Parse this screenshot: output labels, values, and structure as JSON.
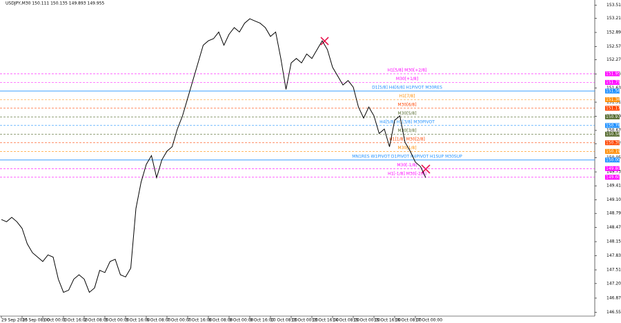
{
  "chart_data": {
    "type": "line",
    "title": "USDJPY,M30  150.111 150.135 149.893 149.955",
    "categories": [
      "29 Sep 2025",
      null,
      null,
      null,
      "30 Sep 08:00",
      null,
      null,
      null,
      "1 Oct 00:00",
      null,
      null,
      null,
      "1 Oct 16:00",
      null,
      null,
      null,
      "2 Oct 08:00",
      null,
      null,
      null,
      "3 Oct 00:00",
      null,
      null,
      null,
      "3 Oct 16:00",
      null,
      null,
      null,
      "6 Oct 08:00",
      null,
      null,
      null,
      "7 Oct 00:00",
      null,
      null,
      null,
      "7 Oct 16:00",
      null,
      null,
      null,
      "8 Oct 08:00",
      null,
      null,
      null,
      "9 Oct 00:00",
      null,
      null,
      null,
      "9 Oct 16:00",
      null,
      null,
      null,
      "10 Oct 08:00",
      null,
      null,
      null,
      "13 Oct 00:00",
      null,
      null,
      null,
      "13 Oct 16:00",
      null,
      null,
      null,
      "14 Oct 08:00",
      null,
      null,
      null,
      "15 Oct 00:00",
      null,
      null,
      null,
      "15 Oct 16:00",
      null,
      null,
      null,
      "16 Oct 08:00",
      null,
      null,
      null,
      "17 Oct 00:00",
      null,
      null
    ],
    "series": [
      {
        "color": "#000000",
        "values": [
          148.65,
          148.6,
          148.7,
          148.6,
          148.45,
          148.1,
          147.9,
          147.8,
          147.7,
          147.85,
          147.8,
          147.3,
          147.0,
          147.05,
          147.3,
          147.4,
          147.3,
          147.0,
          147.1,
          147.5,
          147.45,
          147.7,
          147.75,
          147.4,
          147.35,
          147.55,
          148.9,
          149.5,
          149.9,
          150.1,
          149.6,
          150.0,
          150.2,
          150.3,
          150.7,
          151.0,
          151.4,
          151.8,
          152.2,
          152.6,
          152.7,
          152.75,
          152.9,
          152.6,
          152.85,
          153.0,
          152.9,
          153.1,
          153.2,
          153.15,
          153.1,
          153.0,
          152.8,
          152.9,
          152.3,
          151.6,
          152.2,
          152.3,
          152.2,
          152.4,
          152.3,
          152.5,
          152.7,
          152.5,
          152.1,
          151.9,
          151.7,
          151.8,
          151.65,
          151.2,
          150.95,
          151.2,
          151.0,
          150.6,
          150.7,
          150.3,
          150.9,
          151.0,
          150.4,
          150.2,
          149.95,
          149.85,
          149.6
        ]
      }
    ],
    "ylim": [
      146.4,
      153.625
    ],
    "yticks": [
      {
        "value": 153.51,
        "label": "153.510"
      },
      {
        "value": 153.21,
        "label": "153.210"
      },
      {
        "value": 152.89,
        "label": "152.890"
      },
      {
        "value": 152.57,
        "label": "152.570"
      },
      {
        "value": 152.27,
        "label": "152.270"
      },
      {
        "value": 151.95,
        "label": "151.950"
      },
      {
        "value": 151.63,
        "label": "151.630"
      },
      {
        "value": 151.31,
        "label": "151.310"
      },
      {
        "value": 150.99,
        "label": "150.990"
      },
      {
        "value": 150.67,
        "label": "150.670"
      },
      {
        "value": 150.37,
        "label": "150.370"
      },
      {
        "value": 150.05,
        "label": "150.050"
      },
      {
        "value": 149.73,
        "label": "149.730"
      },
      149.415,
      {
        "value": 149.1,
        "label": "149.100"
      },
      {
        "value": 148.79,
        "label": "148.790"
      },
      {
        "value": 148.47,
        "label": "148.470"
      },
      {
        "value": 148.15,
        "label": "148.150"
      },
      {
        "value": 147.83,
        "label": "147.830"
      },
      {
        "value": 147.51,
        "label": "147.510"
      },
      {
        "value": 147.2,
        "label": "147.200"
      },
      {
        "value": 146.87,
        "label": "146.870"
      },
      {
        "value": 146.55,
        "label": "146.550"
      }
    ],
    "levels": [
      {
        "name": "H1[5/8] M30[+2/8]",
        "value": 151.953,
        "color": "#ff00ff",
        "dashed": true
      },
      {
        "name": "M30[+1/8]",
        "value": 151.758,
        "color": "#ff00ff",
        "dashed": true
      },
      {
        "name": "D1[5/8] H4[6/8] H1PIVOT M30RES",
        "value": 151.562,
        "color": "#1e90ff",
        "dashed": false
      },
      {
        "name": "H1[7/8]",
        "value": 151.367,
        "color": "#ff8c00",
        "dashed": true
      },
      {
        "name": "M30[6/8]",
        "value": 151.172,
        "color": "#ff4500",
        "dashed": true
      },
      {
        "name": "M30[5/8]",
        "value": 150.977,
        "color": "#556b2f",
        "dashed": true
      },
      {
        "name": "H4[5/8] H1[3/8] M30PIVOT",
        "value": 150.781,
        "color": "#1e90ff",
        "dashed": true
      },
      {
        "name": "M30[3/8]",
        "value": 150.586,
        "color": "#556b2f",
        "dashed": true
      },
      {
        "name": "H1[1/8] M30[2/8]",
        "value": 150.391,
        "color": "#ff4500",
        "dashed": true
      },
      {
        "name": "M30[1/8]",
        "value": 150.195,
        "color": "#ff8c00",
        "dashed": true
      },
      {
        "name": "MN1RES W1PIVOT D1PIVOT H4PIVOT H1SUP M30SUP",
        "value": 150.0,
        "label": "150.000",
        "color": "#1e90ff",
        "dashed": false
      },
      {
        "name": "M30[-1/8]",
        "value": 149.805,
        "color": "#ff00ff",
        "dashed": true
      },
      {
        "name": "H1[-1/8] M30[-2/8]",
        "value": 149.609,
        "color": "#ff00ff",
        "dashed": true
      }
    ]
  }
}
